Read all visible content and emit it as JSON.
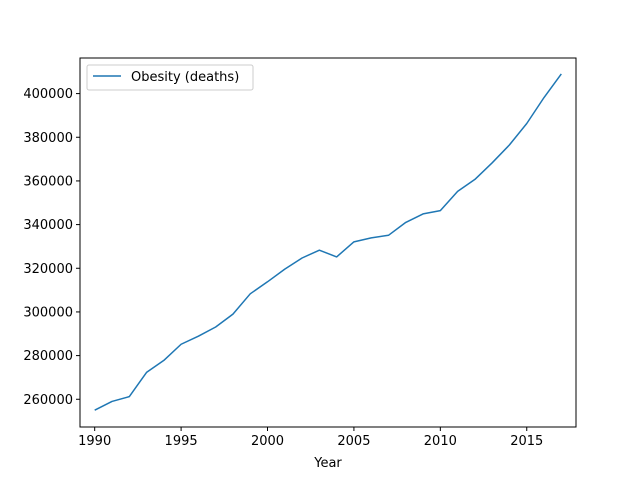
{
  "chart_data": {
    "type": "line",
    "title": "",
    "xlabel": "Year",
    "ylabel": "",
    "xlim": [
      1989.15,
      2017.85
    ],
    "ylim": [
      247300,
      416300
    ],
    "xticks": [
      1990,
      1995,
      2000,
      2005,
      2010,
      2015
    ],
    "yticks": [
      260000,
      280000,
      300000,
      320000,
      340000,
      360000,
      380000,
      400000
    ],
    "grid": false,
    "legend_position": "top-left",
    "series": [
      {
        "name": "Obesity (deaths)",
        "color": "#1f77b4",
        "x": [
          1990,
          1991,
          1992,
          1993,
          1994,
          1995,
          1996,
          1997,
          1998,
          1999,
          2000,
          2001,
          2002,
          2003,
          2004,
          2005,
          2006,
          2007,
          2008,
          2009,
          2010,
          2011,
          2012,
          2013,
          2014,
          2015,
          2016,
          2017
        ],
        "values": [
          255000,
          259000,
          261200,
          272300,
          277800,
          285200,
          288900,
          293100,
          299000,
          308300,
          313800,
          319600,
          324700,
          328300,
          325200,
          332100,
          333900,
          335100,
          341000,
          344900,
          346400,
          355200,
          360700,
          368300,
          376500,
          386300,
          398200,
          409000
        ]
      }
    ]
  }
}
